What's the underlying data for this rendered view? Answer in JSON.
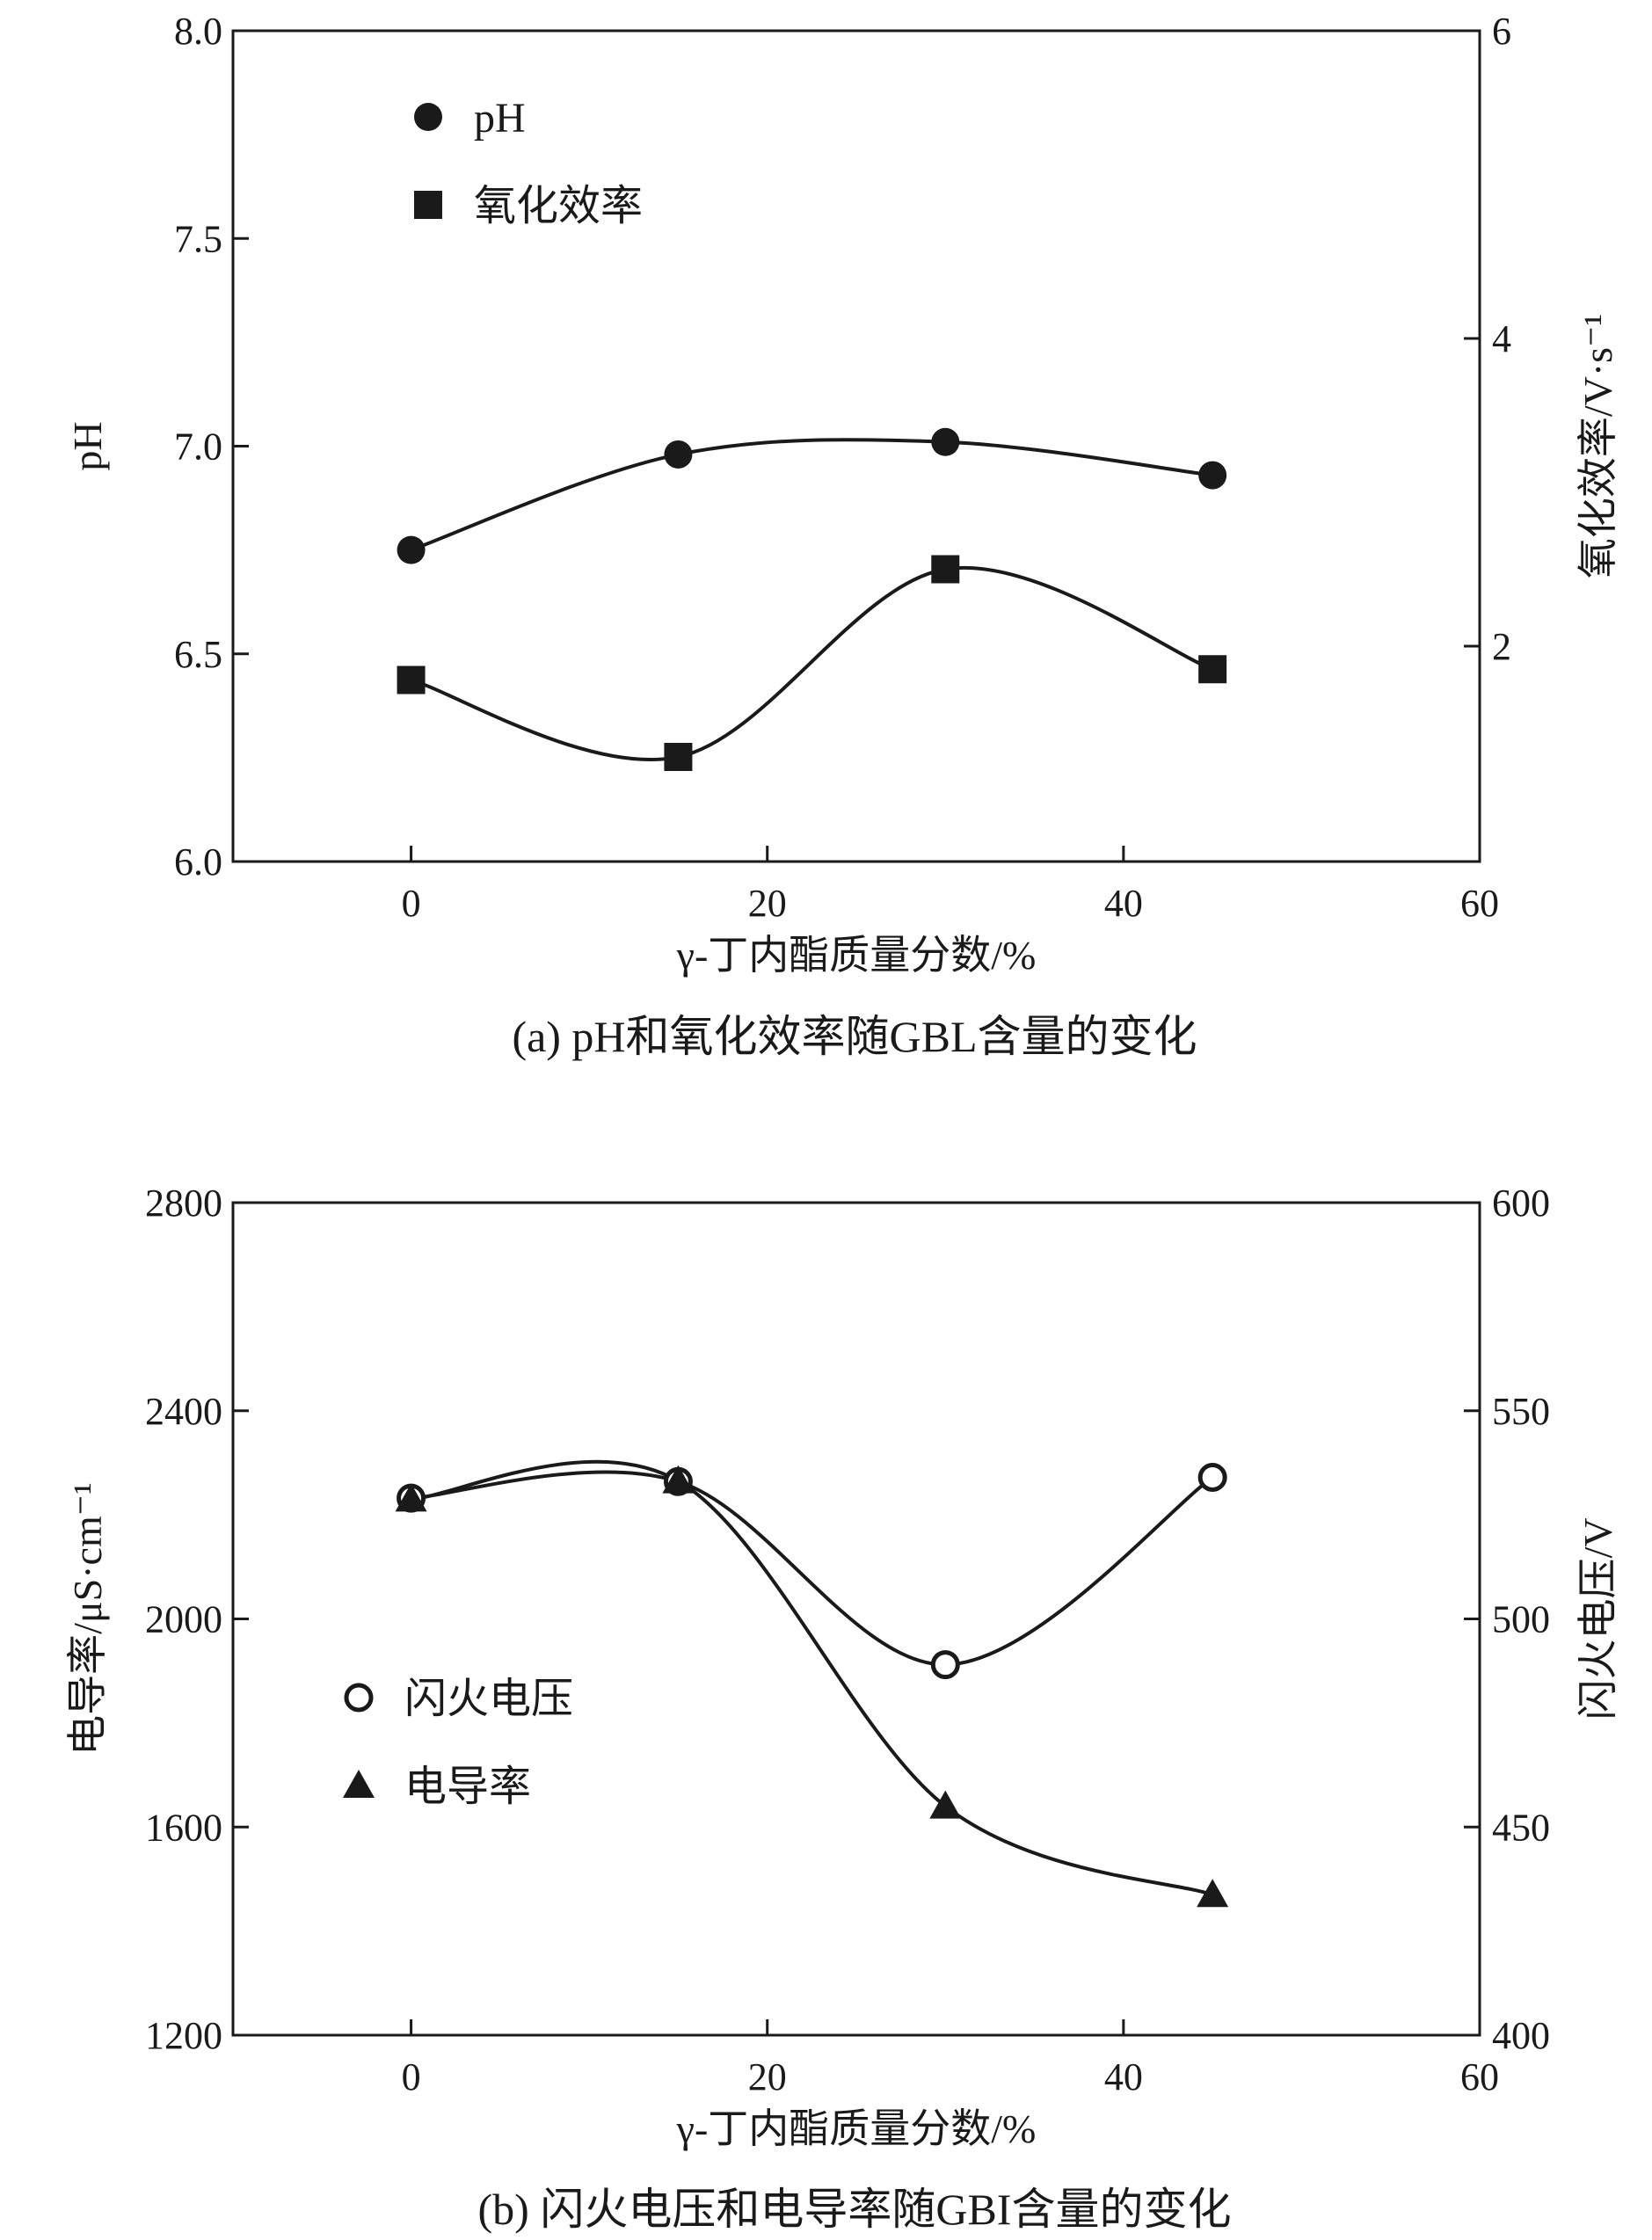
{
  "chart_data": [
    {
      "type": "line",
      "panel": "a",
      "caption": "(a) pH和氧化效率随GBL含量的变化",
      "xlabel": "γ-丁内酯质量分数/%",
      "ylabel_left": "pH",
      "ylabel_right": "氧化效率/V·s⁻¹",
      "xlim": [
        -10,
        60
      ],
      "xticks": [
        "0",
        "20",
        "40",
        "60"
      ],
      "ylim_left": [
        6.0,
        8.0
      ],
      "yticks_left": [
        "6.0",
        "6.5",
        "7.0",
        "7.5",
        "8.0"
      ],
      "ylim_right": [
        0.6,
        6.0
      ],
      "yticks_right": [
        "2",
        "4",
        "6"
      ],
      "legend_position": "top-left",
      "series": [
        {
          "name": "pH",
          "marker": "filled-circle",
          "axis": "left",
          "x": [
            0,
            15,
            30,
            45
          ],
          "values": [
            6.75,
            6.98,
            7.01,
            6.93
          ]
        },
        {
          "name": "氧化效率",
          "marker": "filled-square",
          "axis": "right",
          "x": [
            0,
            15,
            30,
            45
          ],
          "values": [
            1.78,
            1.28,
            2.5,
            1.85
          ]
        }
      ]
    },
    {
      "type": "line",
      "panel": "b",
      "caption": "(b) 闪火电压和电导率随GBI含量的变化",
      "xlabel": "γ-丁内酯质量分数/%",
      "ylabel_left": "电导率/μS·cm⁻¹",
      "ylabel_right": "闪火电压/V",
      "xlim": [
        -10,
        60
      ],
      "xticks": [
        "0",
        "20",
        "40",
        "60"
      ],
      "ylim_left": [
        1200,
        2800
      ],
      "yticks_left": [
        "1200",
        "1600",
        "2000",
        "2400",
        "2800"
      ],
      "ylim_right": [
        400,
        600
      ],
      "yticks_right": [
        "400",
        "450",
        "500",
        "550",
        "600"
      ],
      "legend_position": "middle-left",
      "series": [
        {
          "name": "闪火电压",
          "marker": "open-circle",
          "axis": "right",
          "x": [
            0,
            15,
            30,
            45
          ],
          "values": [
            529,
            533,
            489,
            534
          ]
        },
        {
          "name": "电导率",
          "marker": "filled-triangle",
          "axis": "left",
          "x": [
            0,
            15,
            30,
            45
          ],
          "values": [
            2230,
            2265,
            1640,
            1470
          ]
        }
      ]
    }
  ]
}
